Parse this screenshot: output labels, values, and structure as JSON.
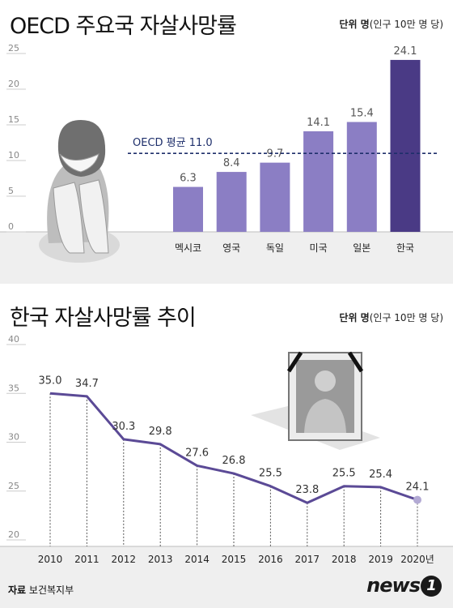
{
  "chart_data": [
    {
      "type": "bar",
      "title": "OECD 주요국 자살사망률",
      "unit_label": "단위 명",
      "unit_detail": "(인구 10만 명 당)",
      "categories": [
        "멕시코",
        "영국",
        "독일",
        "미국",
        "일본",
        "한국"
      ],
      "values": [
        6.3,
        8.4,
        9.7,
        14.1,
        15.4,
        24.1
      ],
      "value_labels": [
        "6.3",
        "8.4",
        "9.7",
        "14.1",
        "15.4",
        "24.1"
      ],
      "ylim": [
        0,
        25
      ],
      "yticks": [
        "0",
        "5",
        "10",
        "15",
        "20",
        "25"
      ],
      "reference_line": {
        "label": "OECD 평균 11.0",
        "value": 11.0
      },
      "grid": false,
      "colors": {
        "bar": "#8b7ec4",
        "highlight": "#4a3a85",
        "reference": "#1e2f6b"
      }
    },
    {
      "type": "line",
      "title": "한국 자살사망률 추이",
      "unit_label": "단위 명",
      "unit_detail": "(인구 10만 명 당)",
      "x": [
        "2010",
        "2011",
        "2012",
        "2013",
        "2014",
        "2015",
        "2016",
        "2017",
        "2018",
        "2019",
        "2020년"
      ],
      "values": [
        35.0,
        34.7,
        30.3,
        29.8,
        27.6,
        26.8,
        25.5,
        23.8,
        25.5,
        25.4,
        24.1
      ],
      "value_labels": [
        "35.0",
        "34.7",
        "30.3",
        "29.8",
        "27.6",
        "26.8",
        "25.5",
        "23.8",
        "25.5",
        "25.4",
        "24.1"
      ],
      "ylim": [
        20,
        40
      ],
      "yticks": [
        "20",
        "25",
        "30",
        "35",
        "40"
      ],
      "grid": false,
      "colors": {
        "line": "#5b4a96",
        "end_marker": "#b3aad4",
        "guide": "#555555"
      }
    }
  ],
  "footer": {
    "source_label": "자료",
    "source": "보건복지부",
    "logo": "news",
    "logo_mark": "1"
  }
}
